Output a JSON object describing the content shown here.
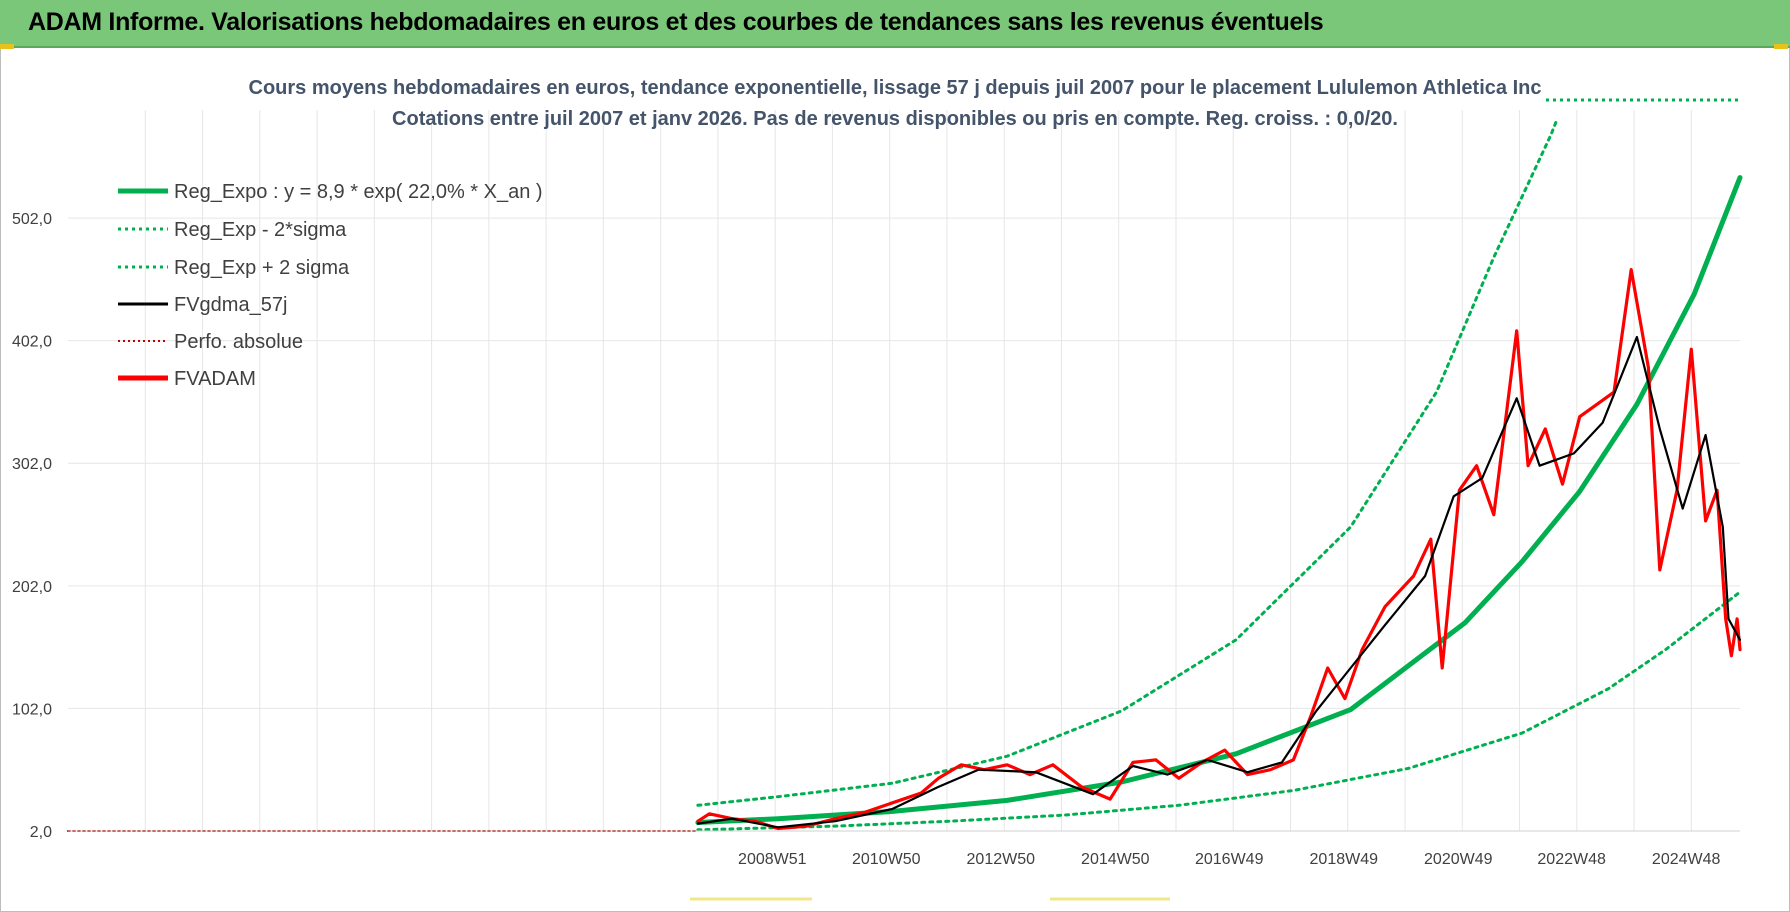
{
  "banner": {
    "title": "ADAM Informe. Valorisations hebdomadaires en euros et des courbes de tendances sans les revenus éventuels"
  },
  "colors": {
    "banner_bg": "#7ac77a",
    "green": "#00b050",
    "black": "#000000",
    "red": "#ff0000",
    "dark_red": "#c00000"
  },
  "chart_data": {
    "type": "line",
    "title": "Cours moyens hebdomadaires en euros, tendance exponentielle, lissage 57 j depuis juil 2007 pour le placement Lululemon Athletica Inc",
    "subtitle": "Cotations entre juil 2007 et janv 2026. Pas de revenus disponibles ou pris en compte. Reg. croiss. : 0,0/20.",
    "ylim": [
      2,
      582
    ],
    "y_ticks": [
      "2,0",
      "102,0",
      "202,0",
      "302,0",
      "402,0",
      "502,0"
    ],
    "y_tick_values": [
      2,
      102,
      202,
      302,
      402,
      502
    ],
    "x_range": [
      1996.6,
      2025.8
    ],
    "x_ticks": [
      {
        "label": "2008W51",
        "x": 2008.97
      },
      {
        "label": "2010W50",
        "x": 2010.96
      },
      {
        "label": "2012W50",
        "x": 2012.96
      },
      {
        "label": "2014W50",
        "x": 2014.96
      },
      {
        "label": "2016W49",
        "x": 2016.95
      },
      {
        "label": "2018W49",
        "x": 2018.95
      },
      {
        "label": "2020W49",
        "x": 2020.95
      },
      {
        "label": "2022W48",
        "x": 2022.93
      },
      {
        "label": "2024W48",
        "x": 2024.93
      }
    ],
    "legend": [
      "Reg_Expo : y = 8,9 * exp( 22,0% *  X_an )",
      "Reg_Exp - 2*sigma",
      "Reg_Exp + 2 sigma",
      "FVgdma_57j",
      "Perfo. absolue",
      "FVADAM"
    ],
    "series": [
      {
        "name": "Reg_Expo : y = 8,9 * exp( 22,0% *  X_an )",
        "color": "#00b050",
        "style": "solid",
        "points": [
          [
            2007.6,
            8.9
          ],
          [
            2009,
            12
          ],
          [
            2011,
            18
          ],
          [
            2013,
            27
          ],
          [
            2015,
            42
          ],
          [
            2017,
            65
          ],
          [
            2019,
            101
          ],
          [
            2021,
            172
          ],
          [
            2022,
            222
          ],
          [
            2023,
            279
          ],
          [
            2024,
            350
          ],
          [
            2025,
            440
          ],
          [
            2025.8,
            535
          ]
        ]
      },
      {
        "name": "Reg_Exp - 2*sigma",
        "color": "#00b050",
        "style": "dotted",
        "points": [
          [
            2007.6,
            3
          ],
          [
            2010,
            6
          ],
          [
            2012,
            10
          ],
          [
            2014,
            15
          ],
          [
            2016,
            23
          ],
          [
            2018,
            35
          ],
          [
            2020,
            53
          ],
          [
            2022,
            82
          ],
          [
            2023.5,
            118
          ],
          [
            2024.5,
            150
          ],
          [
            2025.8,
            197
          ]
        ]
      },
      {
        "name": "Reg_Exp + 2 sigma",
        "color": "#00b050",
        "style": "dotted",
        "points": [
          [
            2007.6,
            23
          ],
          [
            2009,
            30
          ],
          [
            2011,
            41
          ],
          [
            2013,
            63
          ],
          [
            2015,
            100
          ],
          [
            2017,
            158
          ],
          [
            2019,
            250
          ],
          [
            2020.5,
            360
          ],
          [
            2021.5,
            470
          ],
          [
            2022.5,
            570
          ],
          [
            2022.6,
            582
          ]
        ]
      },
      {
        "name": "FVgdma_57j",
        "color": "#000000",
        "style": "solid",
        "points": [
          [
            2007.6,
            8
          ],
          [
            2008.2,
            12
          ],
          [
            2009,
            5
          ],
          [
            2010,
            10
          ],
          [
            2011,
            20
          ],
          [
            2011.8,
            38
          ],
          [
            2012.5,
            52
          ],
          [
            2013.5,
            50
          ],
          [
            2014.5,
            32
          ],
          [
            2015.2,
            55
          ],
          [
            2015.8,
            48
          ],
          [
            2016.5,
            60
          ],
          [
            2017.2,
            50
          ],
          [
            2017.8,
            58
          ],
          [
            2018.4,
            100
          ],
          [
            2019,
            135
          ],
          [
            2019.6,
            170
          ],
          [
            2020.3,
            210
          ],
          [
            2020.8,
            275
          ],
          [
            2021.3,
            290
          ],
          [
            2021.9,
            355
          ],
          [
            2022.3,
            300
          ],
          [
            2022.9,
            310
          ],
          [
            2023.4,
            335
          ],
          [
            2024,
            405
          ],
          [
            2024.4,
            330
          ],
          [
            2024.8,
            265
          ],
          [
            2025.2,
            325
          ],
          [
            2025.5,
            250
          ],
          [
            2025.6,
            175
          ],
          [
            2025.8,
            158
          ]
        ]
      },
      {
        "name": "Perfo. absolue",
        "color": "#c00000",
        "style": "dotted",
        "points": [
          [
            1996.6,
            2
          ],
          [
            2007.6,
            2
          ]
        ]
      },
      {
        "name": "FVADAM",
        "color": "#ff0000",
        "style": "solid",
        "points": [
          [
            2007.6,
            10
          ],
          [
            2007.8,
            16
          ],
          [
            2008.2,
            12
          ],
          [
            2008.6,
            10
          ],
          [
            2009,
            4
          ],
          [
            2009.5,
            6
          ],
          [
            2010,
            12
          ],
          [
            2010.5,
            17
          ],
          [
            2011,
            25
          ],
          [
            2011.5,
            33
          ],
          [
            2011.8,
            45
          ],
          [
            2012.2,
            56
          ],
          [
            2012.6,
            52
          ],
          [
            2013,
            56
          ],
          [
            2013.4,
            48
          ],
          [
            2013.8,
            56
          ],
          [
            2014.3,
            38
          ],
          [
            2014.8,
            28
          ],
          [
            2015.2,
            58
          ],
          [
            2015.6,
            60
          ],
          [
            2016,
            45
          ],
          [
            2016.4,
            58
          ],
          [
            2016.8,
            68
          ],
          [
            2017.2,
            48
          ],
          [
            2017.6,
            52
          ],
          [
            2018,
            60
          ],
          [
            2018.3,
            95
          ],
          [
            2018.6,
            135
          ],
          [
            2018.9,
            110
          ],
          [
            2019.2,
            150
          ],
          [
            2019.6,
            185
          ],
          [
            2020.1,
            210
          ],
          [
            2020.4,
            240
          ],
          [
            2020.6,
            135
          ],
          [
            2020.9,
            280
          ],
          [
            2021.2,
            300
          ],
          [
            2021.5,
            260
          ],
          [
            2021.9,
            410
          ],
          [
            2022.1,
            300
          ],
          [
            2022.4,
            330
          ],
          [
            2022.7,
            285
          ],
          [
            2023,
            340
          ],
          [
            2023.3,
            350
          ],
          [
            2023.6,
            360
          ],
          [
            2023.9,
            460
          ],
          [
            2024.2,
            380
          ],
          [
            2024.4,
            215
          ],
          [
            2024.7,
            280
          ],
          [
            2024.95,
            395
          ],
          [
            2025.2,
            255
          ],
          [
            2025.4,
            280
          ],
          [
            2025.55,
            175
          ],
          [
            2025.65,
            145
          ],
          [
            2025.75,
            175
          ],
          [
            2025.8,
            150
          ]
        ]
      }
    ]
  }
}
